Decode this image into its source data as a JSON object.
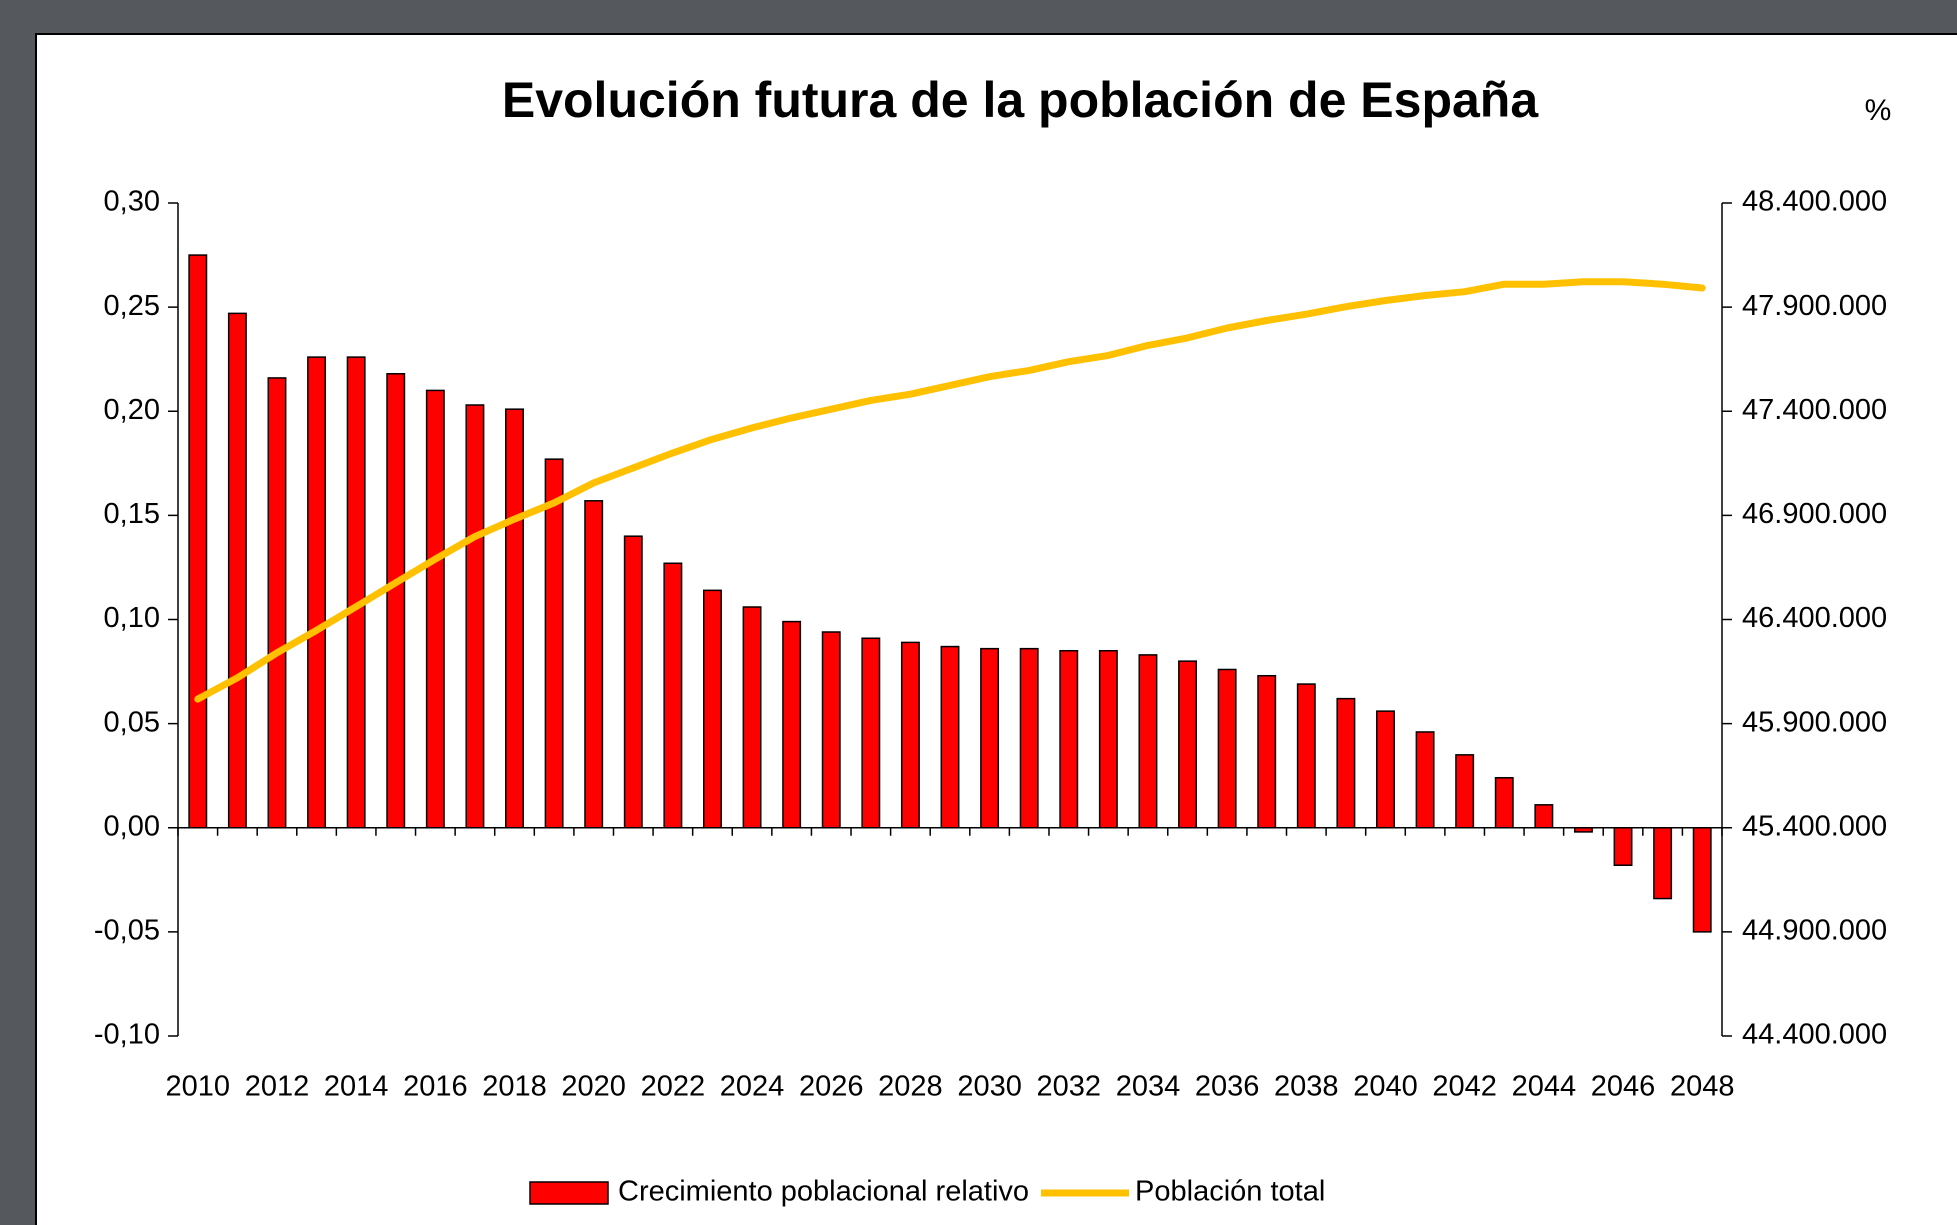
{
  "chart_data": {
    "type": "bar-line",
    "title": "Evolución futura de la población de España",
    "annotation": "%",
    "categories": [
      "2010",
      null,
      "2012",
      null,
      "2014",
      null,
      "2016",
      null,
      "2018",
      null,
      "2020",
      null,
      "2022",
      null,
      "2024",
      null,
      "2026",
      null,
      "2028",
      null,
      "2030",
      null,
      "2032",
      null,
      "2034",
      null,
      "2036",
      null,
      "2038",
      null,
      "2040",
      null,
      "2042",
      null,
      "2044",
      null,
      "2046",
      null,
      "2048"
    ],
    "series": [
      {
        "name": "Crecimiento poblacional relativo",
        "type": "bar",
        "color": "#ff0000",
        "values": [
          0.275,
          0.247,
          0.216,
          0.226,
          0.226,
          0.218,
          0.21,
          0.203,
          0.201,
          0.177,
          0.157,
          0.14,
          0.127,
          0.114,
          0.106,
          0.099,
          0.094,
          0.091,
          0.089,
          0.087,
          0.086,
          0.086,
          0.085,
          0.085,
          0.083,
          0.08,
          0.076,
          0.073,
          0.069,
          0.062,
          0.056,
          0.046,
          0.035,
          0.024,
          0.011,
          -0.002,
          -0.018,
          -0.034,
          -0.05
        ]
      },
      {
        "name": "Población total",
        "type": "line",
        "axis": "y2",
        "color": "#ffc000",
        "values": [
          46018000,
          46120000,
          46240000,
          46348000,
          46462000,
          46576000,
          46690000,
          46798000,
          46882000,
          46960000,
          47056000,
          47128000,
          47200000,
          47266000,
          47320000,
          47368000,
          47410000,
          47452000,
          47482000,
          47524000,
          47566000,
          47596000,
          47638000,
          47668000,
          47716000,
          47752000,
          47800000,
          47836000,
          47866000,
          47902000,
          47932000,
          47956000,
          47974000,
          48010000,
          48010000,
          48022000,
          48022000,
          48010000,
          47992000
        ]
      }
    ],
    "ylim": [
      -0.1,
      0.3
    ],
    "yticks": [
      {
        "value": -0.1,
        "label": "-0,10"
      },
      {
        "value": -0.05,
        "label": "-0,05"
      },
      {
        "value": 0,
        "label": "0,00"
      },
      {
        "value": 0.05,
        "label": "0,05"
      },
      {
        "value": 0.1,
        "label": "0,10"
      },
      {
        "value": 0.15,
        "label": "0,15"
      },
      {
        "value": 0.2,
        "label": "0,20"
      },
      {
        "value": 0.25,
        "label": "0,25"
      },
      {
        "value": 0.3,
        "label": "0,30"
      }
    ],
    "y2lim": [
      44400000,
      48400000
    ],
    "y2ticks": [
      {
        "value": 44400000,
        "label": "44.400.000"
      },
      {
        "value": 44900000,
        "label": "44.900.000"
      },
      {
        "value": 45400000,
        "label": "45.400.000"
      },
      {
        "value": 45900000,
        "label": "45.900.000"
      },
      {
        "value": 46400000,
        "label": "46.400.000"
      },
      {
        "value": 46900000,
        "label": "46.900.000"
      },
      {
        "value": 47400000,
        "label": "47.400.000"
      },
      {
        "value": 47900000,
        "label": "47.900.000"
      },
      {
        "value": 48400000,
        "label": "48.400.000"
      }
    ],
    "grid": false,
    "legend": "bottom"
  }
}
